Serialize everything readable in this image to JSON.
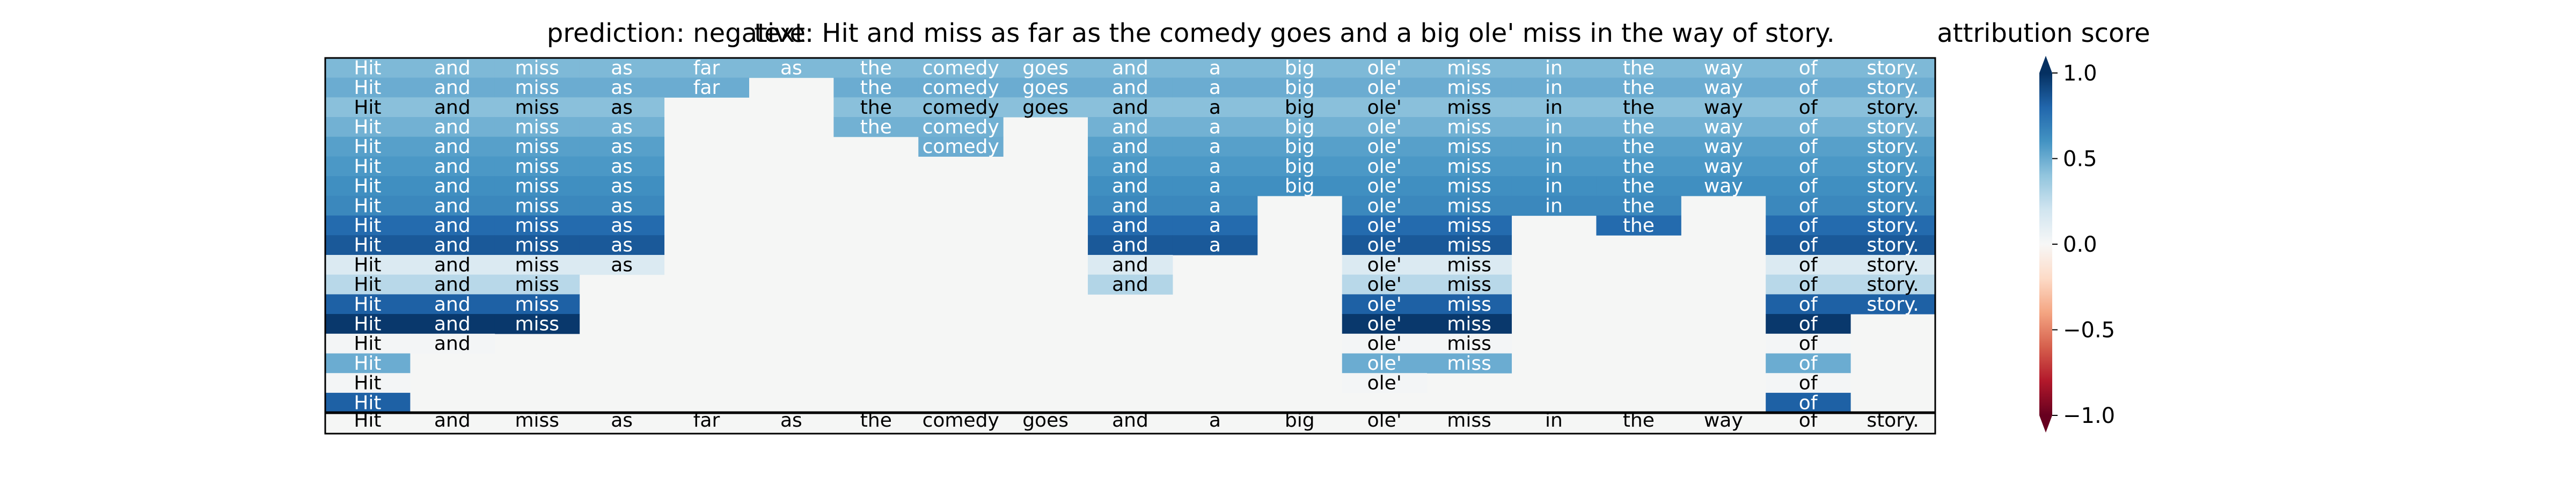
{
  "chart_data": {
    "type": "heatmap",
    "titles": {
      "prediction": "prediction:  negative",
      "text": "text:  Hit and miss as far as the comedy goes and a big ole' miss in the way of story.",
      "colorbar": "attribution score"
    },
    "tokens": [
      "Hit",
      "and",
      "miss",
      "as",
      "far",
      "as",
      "the",
      "comedy",
      "goes",
      "and",
      "a",
      "big",
      "ole'",
      "miss",
      "in",
      "the",
      "way",
      "of",
      "story."
    ],
    "rows": [
      [
        0.45,
        0.45,
        0.45,
        0.45,
        0.45,
        0.45,
        0.45,
        0.45,
        0.45,
        0.45,
        0.45,
        0.45,
        0.45,
        0.45,
        0.45,
        0.45,
        0.45,
        0.45,
        0.45
      ],
      [
        0.5,
        0.5,
        0.5,
        0.5,
        0.5,
        null,
        0.5,
        0.5,
        0.5,
        0.5,
        0.5,
        0.5,
        0.5,
        0.5,
        0.5,
        0.5,
        0.5,
        0.5,
        0.5
      ],
      [
        0.42,
        0.42,
        0.42,
        0.42,
        null,
        null,
        0.42,
        0.42,
        0.42,
        0.42,
        0.42,
        0.42,
        0.42,
        0.42,
        0.42,
        0.42,
        0.42,
        0.42,
        0.42
      ],
      [
        0.48,
        0.48,
        0.48,
        0.48,
        null,
        null,
        0.48,
        0.48,
        null,
        0.48,
        0.48,
        0.48,
        0.48,
        0.48,
        0.48,
        0.48,
        0.48,
        0.48,
        0.48
      ],
      [
        0.55,
        0.55,
        0.55,
        0.55,
        null,
        null,
        null,
        0.5,
        null,
        0.55,
        0.55,
        0.55,
        0.55,
        0.55,
        0.55,
        0.55,
        0.55,
        0.55,
        0.55
      ],
      [
        0.58,
        0.58,
        0.58,
        0.58,
        null,
        null,
        null,
        null,
        null,
        0.58,
        0.58,
        0.58,
        0.58,
        0.58,
        0.58,
        0.58,
        0.58,
        0.58,
        0.58
      ],
      [
        0.62,
        0.62,
        0.62,
        0.62,
        null,
        null,
        null,
        null,
        null,
        0.62,
        0.62,
        0.62,
        0.62,
        0.62,
        0.62,
        0.62,
        0.62,
        0.62,
        0.62
      ],
      [
        0.65,
        0.65,
        0.65,
        0.65,
        null,
        null,
        null,
        null,
        null,
        0.65,
        0.65,
        null,
        0.65,
        0.65,
        0.65,
        0.65,
        null,
        0.65,
        0.65
      ],
      [
        0.78,
        0.78,
        0.78,
        0.78,
        null,
        null,
        null,
        null,
        null,
        0.78,
        0.78,
        null,
        0.78,
        0.78,
        null,
        0.78,
        null,
        0.78,
        0.78
      ],
      [
        0.85,
        0.85,
        0.85,
        0.85,
        null,
        null,
        null,
        null,
        null,
        0.85,
        0.85,
        null,
        0.85,
        0.85,
        null,
        null,
        null,
        0.85,
        0.85
      ],
      [
        0.15,
        0.15,
        0.15,
        0.15,
        null,
        null,
        null,
        null,
        null,
        0.15,
        null,
        null,
        0.15,
        0.15,
        null,
        null,
        null,
        0.15,
        0.15
      ],
      [
        0.28,
        0.28,
        0.28,
        null,
        null,
        null,
        null,
        null,
        null,
        0.3,
        null,
        null,
        0.28,
        0.28,
        null,
        null,
        null,
        0.28,
        0.28
      ],
      [
        0.82,
        0.82,
        0.82,
        null,
        null,
        null,
        null,
        null,
        null,
        null,
        null,
        null,
        0.82,
        0.82,
        null,
        null,
        null,
        0.82,
        0.82
      ],
      [
        0.97,
        0.97,
        0.97,
        null,
        null,
        null,
        null,
        null,
        null,
        null,
        null,
        null,
        0.97,
        0.97,
        null,
        null,
        null,
        0.97,
        null
      ],
      [
        0.02,
        0.02,
        null,
        null,
        null,
        null,
        null,
        null,
        null,
        null,
        null,
        null,
        0.02,
        0.02,
        null,
        null,
        null,
        0.02,
        null
      ],
      [
        0.5,
        null,
        null,
        null,
        null,
        null,
        null,
        null,
        null,
        null,
        null,
        null,
        0.5,
        0.5,
        null,
        null,
        null,
        0.5,
        null
      ],
      [
        0.02,
        null,
        null,
        null,
        null,
        null,
        null,
        null,
        null,
        null,
        null,
        null,
        0.02,
        null,
        null,
        null,
        null,
        0.02,
        null
      ],
      [
        0.82,
        null,
        null,
        null,
        null,
        null,
        null,
        null,
        null,
        null,
        null,
        null,
        null,
        null,
        null,
        null,
        null,
        0.82,
        null
      ]
    ],
    "bottom_row_tokens": [
      "Hit",
      "and",
      "miss",
      "as",
      "far",
      "as",
      "the",
      "comedy",
      "goes",
      "and",
      "a",
      "big",
      "ole'",
      "miss",
      "in",
      "the",
      "way",
      "of",
      "story."
    ],
    "colorbar": {
      "colormap": "RdBu",
      "range": [
        -1.0,
        1.0
      ],
      "ticks": [
        1.0,
        0.5,
        0.0,
        -0.5,
        -1.0
      ],
      "tick_labels": [
        "1.0",
        "0.5",
        "0.0",
        "−0.5",
        "−1.0"
      ],
      "label": "attribution score"
    },
    "colors": {
      "empty_cell": "#f5f6f5"
    }
  }
}
